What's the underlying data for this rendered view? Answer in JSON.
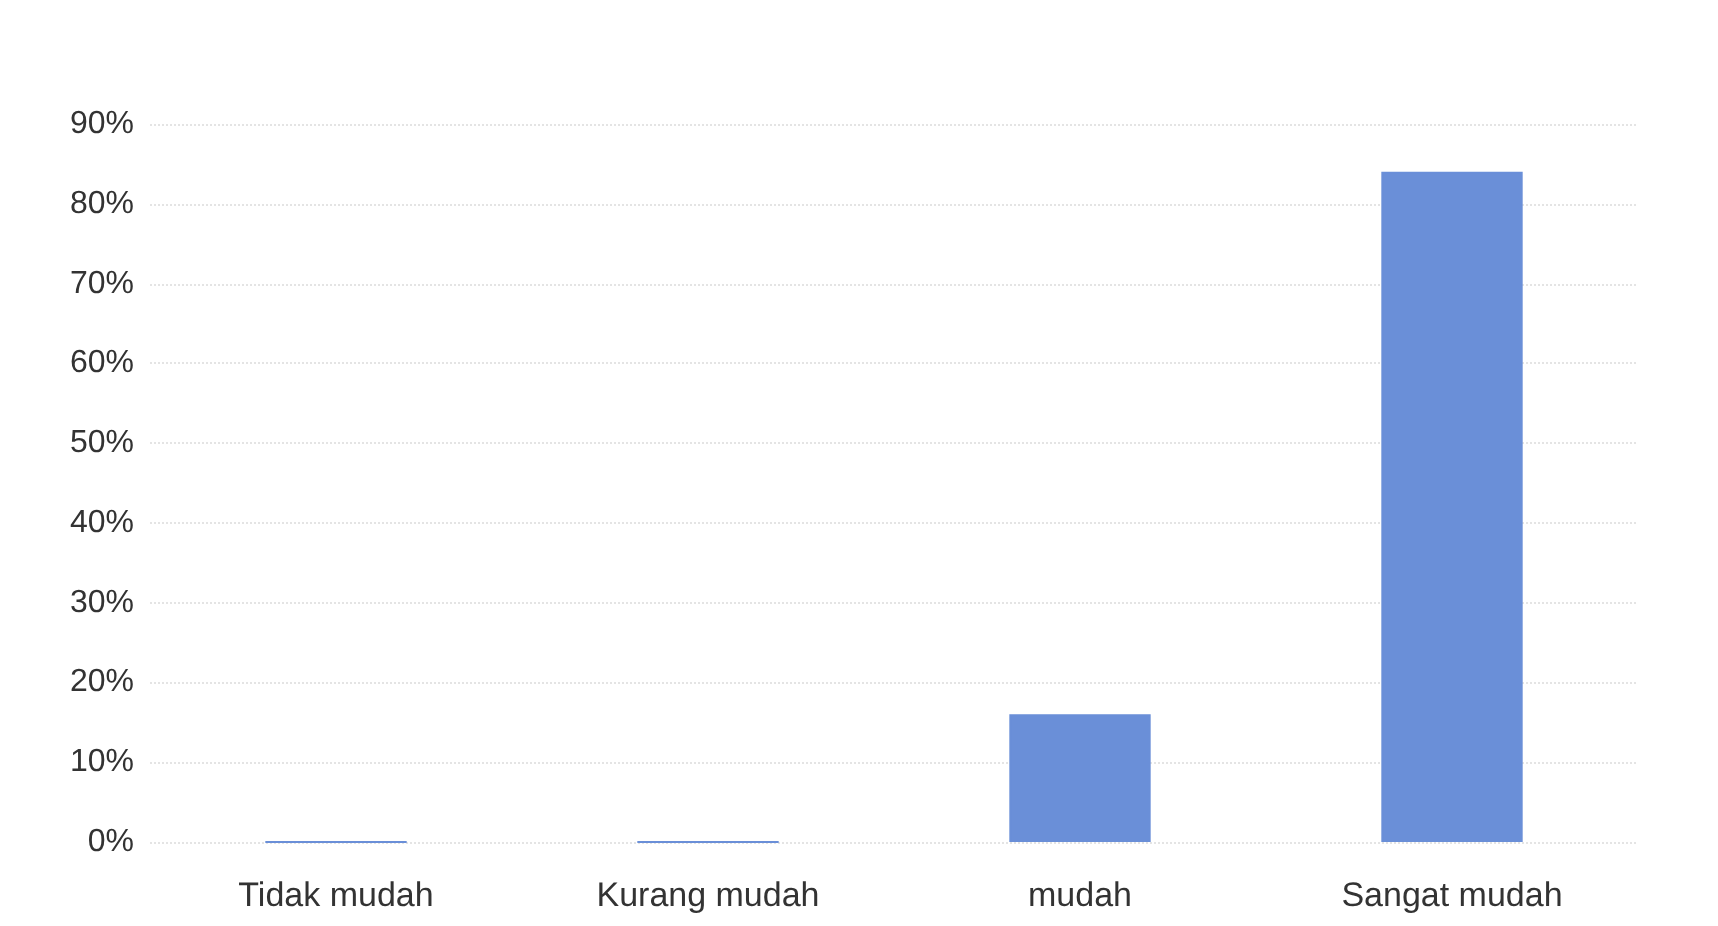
{
  "chart_data": {
    "type": "bar",
    "categories": [
      "Tidak mudah",
      "Kurang mudah",
      "mudah",
      "Sangat mudah"
    ],
    "values": [
      0,
      0,
      16,
      84
    ],
    "color": "#6a8fd8",
    "ylim": [
      0,
      90
    ],
    "yticks": [
      {
        "value": 0,
        "label": "0%"
      },
      {
        "value": 10,
        "label": "10%"
      },
      {
        "value": 20,
        "label": "20%"
      },
      {
        "value": 30,
        "label": "30%"
      },
      {
        "value": 40,
        "label": "40%"
      },
      {
        "value": 50,
        "label": "50%"
      },
      {
        "value": 60,
        "label": "60%"
      },
      {
        "value": 70,
        "label": "70%"
      },
      {
        "value": 80,
        "label": "80%"
      },
      {
        "value": 90,
        "label": "90%"
      }
    ],
    "grid": true
  }
}
